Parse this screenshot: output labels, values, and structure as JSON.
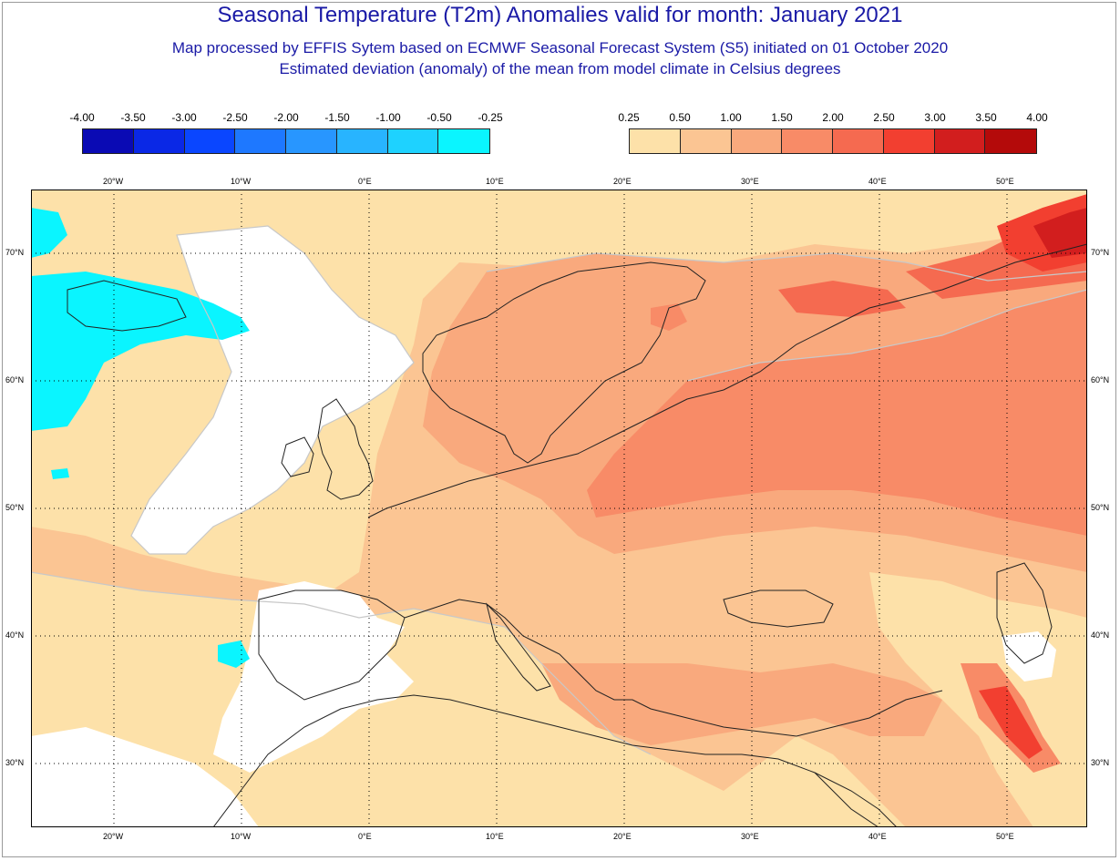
{
  "header": {
    "title": "Seasonal Temperature (T2m) Anomalies valid for month: January 2021",
    "subtitle1": "Map processed by EFFIS Sytem based on ECMWF Seasonal Forecast System (S5) initiated on 01 October 2020",
    "subtitle2": "Estimated deviation (anomaly) of the mean from model climate in Celsius degrees"
  },
  "legend_negative": {
    "labels": [
      "-4.00",
      "-3.50",
      "-3.00",
      "-2.50",
      "-2.00",
      "-1.50",
      "-1.00",
      "-0.50",
      "-0.25"
    ],
    "colors": [
      "#0a0ab4",
      "#0a28e6",
      "#0a46ff",
      "#1e78ff",
      "#2896ff",
      "#28b4ff",
      "#1ed2ff",
      "#0af5ff"
    ]
  },
  "legend_positive": {
    "labels": [
      "0.25",
      "0.50",
      "1.00",
      "1.50",
      "2.00",
      "2.50",
      "3.00",
      "3.50",
      "4.00"
    ],
    "colors": [
      "#fde1a9",
      "#fbc593",
      "#f9a97d",
      "#f88b67",
      "#f56a50",
      "#f23f30",
      "#d21e1e",
      "#b40a0a"
    ]
  },
  "axes": {
    "lon_labels": [
      "20°W",
      "10°W",
      "0°E",
      "10°E",
      "20°E",
      "30°E",
      "40°E",
      "50°E"
    ],
    "lat_labels": [
      "70°N",
      "60°N",
      "50°N",
      "40°N",
      "30°N"
    ]
  },
  "map_colors": {
    "neutral": "#ffffff",
    "cold_light": "#0af5ff",
    "warm_1": "#fde1a9",
    "warm_2": "#fbc593",
    "warm_3": "#f9a97d",
    "warm_4": "#f88b67",
    "warm_5": "#f56a50",
    "warm_6": "#f23f30",
    "warm_7": "#d21e1e",
    "contour": "#c8c8c8",
    "coast": "#222222"
  }
}
